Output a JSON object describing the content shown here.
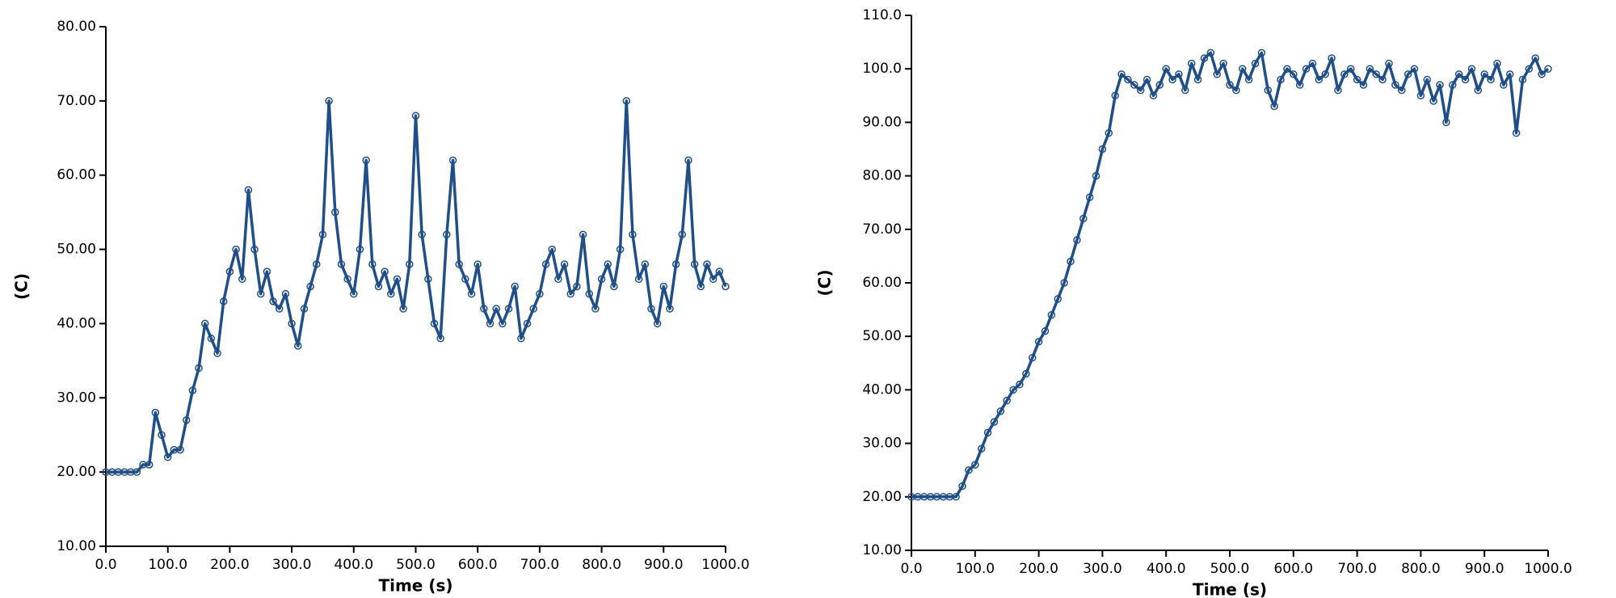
{
  "chart_data": [
    {
      "type": "line",
      "xlabel": "Time (s)",
      "ylabel": "(C)",
      "color": "#1f4e89",
      "xlim": [
        0,
        1000
      ],
      "ylim": [
        10,
        80
      ],
      "xticks": [
        {
          "value": 0,
          "label": "0.0"
        },
        {
          "value": 100,
          "label": "100.0"
        },
        {
          "value": 200,
          "label": "200.0"
        },
        {
          "value": 300,
          "label": "300.0"
        },
        {
          "value": 400,
          "label": "400.0"
        },
        {
          "value": 500,
          "label": "500.0"
        },
        {
          "value": 600,
          "label": "600.0"
        },
        {
          "value": 700,
          "label": "700.0"
        },
        {
          "value": 800,
          "label": "800.0"
        },
        {
          "value": 900,
          "label": "900.0"
        },
        {
          "value": 1000,
          "label": "1000.0"
        }
      ],
      "yticks": [
        {
          "value": 10,
          "label": "10.00"
        },
        {
          "value": 20,
          "label": "20.00"
        },
        {
          "value": 30,
          "label": "30.00"
        },
        {
          "value": 40,
          "label": "40.00"
        },
        {
          "value": 50,
          "label": "50.00"
        },
        {
          "value": 60,
          "label": "60.00"
        },
        {
          "value": 70,
          "label": "70.00"
        },
        {
          "value": 80,
          "label": "80.00"
        }
      ],
      "x": [
        0,
        10,
        20,
        30,
        40,
        50,
        60,
        70,
        80,
        90,
        100,
        110,
        120,
        130,
        140,
        150,
        160,
        170,
        180,
        190,
        200,
        210,
        220,
        230,
        240,
        250,
        260,
        270,
        280,
        290,
        300,
        310,
        320,
        330,
        340,
        350,
        360,
        370,
        380,
        390,
        400,
        410,
        420,
        430,
        440,
        450,
        460,
        470,
        480,
        490,
        500,
        510,
        520,
        530,
        540,
        550,
        560,
        570,
        580,
        590,
        600,
        610,
        620,
        630,
        640,
        650,
        660,
        670,
        680,
        690,
        700,
        710,
        720,
        730,
        740,
        750,
        760,
        770,
        780,
        790,
        800,
        810,
        820,
        830,
        840,
        850,
        860,
        870,
        880,
        890,
        900,
        910,
        920,
        930,
        940,
        950,
        960,
        970,
        980,
        990,
        1000
      ],
      "values": [
        20,
        20,
        20,
        20,
        20,
        20,
        21,
        21,
        28,
        25,
        22,
        23,
        23,
        27,
        31,
        34,
        40,
        38,
        36,
        43,
        47,
        50,
        46,
        58,
        50,
        44,
        47,
        43,
        42,
        44,
        40,
        37,
        42,
        45,
        48,
        52,
        70,
        55,
        48,
        46,
        44,
        50,
        62,
        48,
        45,
        47,
        44,
        46,
        42,
        48,
        68,
        52,
        46,
        40,
        38,
        52,
        62,
        48,
        46,
        44,
        48,
        42,
        40,
        42,
        40,
        42,
        45,
        38,
        40,
        42,
        44,
        48,
        50,
        46,
        48,
        44,
        45,
        52,
        44,
        42,
        46,
        48,
        45,
        50,
        70,
        52,
        46,
        48,
        42,
        40,
        45,
        42,
        48,
        52,
        62,
        48,
        45,
        48,
        46,
        47,
        45
      ]
    },
    {
      "type": "line",
      "xlabel": "Time (s)",
      "ylabel": "(C)",
      "color": "#1f4e89",
      "xlim": [
        0,
        1000
      ],
      "ylim": [
        10,
        110
      ],
      "xticks": [
        {
          "value": 0,
          "label": "0.0"
        },
        {
          "value": 100,
          "label": "100.0"
        },
        {
          "value": 200,
          "label": "200.0"
        },
        {
          "value": 300,
          "label": "300.0"
        },
        {
          "value": 400,
          "label": "400.0"
        },
        {
          "value": 500,
          "label": "500.0"
        },
        {
          "value": 600,
          "label": "600.0"
        },
        {
          "value": 700,
          "label": "700.0"
        },
        {
          "value": 800,
          "label": "800.0"
        },
        {
          "value": 900,
          "label": "900.0"
        },
        {
          "value": 1000,
          "label": "1000.0"
        }
      ],
      "yticks": [
        {
          "value": 10,
          "label": "10.00"
        },
        {
          "value": 20,
          "label": "20.00"
        },
        {
          "value": 30,
          "label": "30.00"
        },
        {
          "value": 40,
          "label": "40.00"
        },
        {
          "value": 50,
          "label": "50.00"
        },
        {
          "value": 60,
          "label": "60.00"
        },
        {
          "value": 70,
          "label": "70.00"
        },
        {
          "value": 80,
          "label": "80.00"
        },
        {
          "value": 90,
          "label": "90.00"
        },
        {
          "value": 100,
          "label": "100.0"
        },
        {
          "value": 110,
          "label": "110.0"
        }
      ],
      "x": [
        0,
        10,
        20,
        30,
        40,
        50,
        60,
        70,
        80,
        90,
        100,
        110,
        120,
        130,
        140,
        150,
        160,
        170,
        180,
        190,
        200,
        210,
        220,
        230,
        240,
        250,
        260,
        270,
        280,
        290,
        300,
        310,
        320,
        330,
        340,
        350,
        360,
        370,
        380,
        390,
        400,
        410,
        420,
        430,
        440,
        450,
        460,
        470,
        480,
        490,
        500,
        510,
        520,
        530,
        540,
        550,
        560,
        570,
        580,
        590,
        600,
        610,
        620,
        630,
        640,
        650,
        660,
        670,
        680,
        690,
        700,
        710,
        720,
        730,
        740,
        750,
        760,
        770,
        780,
        790,
        800,
        810,
        820,
        830,
        840,
        850,
        860,
        870,
        880,
        890,
        900,
        910,
        920,
        930,
        940,
        950,
        960,
        970,
        980,
        990,
        1000
      ],
      "values": [
        20,
        20,
        20,
        20,
        20,
        20,
        20,
        20,
        22,
        25,
        26,
        29,
        32,
        34,
        36,
        38,
        40,
        41,
        43,
        46,
        49,
        51,
        54,
        57,
        60,
        64,
        68,
        72,
        76,
        80,
        85,
        88,
        95,
        99,
        98,
        97,
        96,
        98,
        95,
        97,
        100,
        98,
        99,
        96,
        101,
        98,
        102,
        103,
        99,
        101,
        97,
        96,
        100,
        98,
        101,
        103,
        96,
        93,
        98,
        100,
        99,
        97,
        100,
        101,
        98,
        99,
        102,
        96,
        99,
        100,
        98,
        97,
        100,
        99,
        98,
        101,
        97,
        96,
        99,
        100,
        95,
        98,
        94,
        97,
        90,
        97,
        99,
        98,
        100,
        96,
        99,
        98,
        101,
        97,
        99,
        88,
        98,
        100,
        102,
        99,
        100
      ]
    }
  ]
}
